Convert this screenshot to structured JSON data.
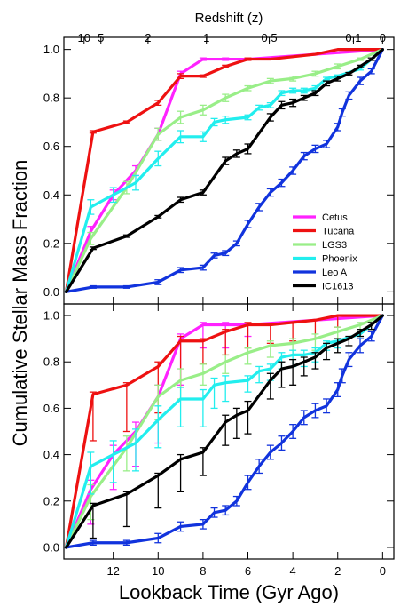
{
  "chart_data": {
    "type": "line",
    "ylabel": "Cumulative Stellar Mass Fraction",
    "xlabel": "Lookback Time (Gyr Ago)",
    "top_axis_label": "Redshift (z)",
    "top_axis_ticks": [
      {
        "label": "10",
        "time": 13.3
      },
      {
        "label": "5",
        "time": 12.55
      },
      {
        "label": "2",
        "time": 10.45
      },
      {
        "label": "1",
        "time": 7.85
      },
      {
        "label": "0.5",
        "time": 5.05
      },
      {
        "label": "0.1",
        "time": 1.3
      },
      {
        "label": "0",
        "time": 0
      }
    ],
    "xlim": [
      14.2,
      -0.5
    ],
    "ylim": [
      -0.05,
      1.05
    ],
    "x_ticks": [
      {
        "value": 12,
        "label": "12"
      },
      {
        "value": 10,
        "label": "10"
      },
      {
        "value": 8,
        "label": "8"
      },
      {
        "value": 6,
        "label": "6"
      },
      {
        "value": 4,
        "label": "4"
      },
      {
        "value": 2,
        "label": "2"
      },
      {
        "value": 0,
        "label": "0"
      }
    ],
    "y_ticks": [
      {
        "value": 0.0,
        "label": "0.0"
      },
      {
        "value": 0.2,
        "label": "0.2"
      },
      {
        "value": 0.4,
        "label": "0.4"
      },
      {
        "value": 0.6,
        "label": "0.6"
      },
      {
        "value": 0.8,
        "label": "0.8"
      },
      {
        "value": 1.0,
        "label": "1.0"
      }
    ],
    "legend_position": "lower-right of top panel",
    "series": [
      {
        "name": "Cetus",
        "color": "#ff22ff",
        "x": [
          14.1,
          13.0,
          12.0,
          11.0,
          10.0,
          9.0,
          8.0,
          7.0,
          6.0,
          0.0
        ],
        "y": [
          0.0,
          0.25,
          0.4,
          0.5,
          0.65,
          0.9,
          0.96,
          0.96,
          0.96,
          1.0
        ],
        "err_top": [
          0.0,
          0.04,
          0.04,
          0.04,
          0.05,
          0.02,
          0.01,
          0.01,
          0.0,
          0.0
        ],
        "err_bottom": [
          0.0,
          0.15,
          0.15,
          0.15,
          0.2,
          0.2,
          0.1,
          0.1,
          0.05,
          0.0
        ]
      },
      {
        "name": "Tucana",
        "color": "#ee1111",
        "x": [
          14.1,
          12.9,
          11.4,
          10.0,
          9.0,
          8.0,
          7.0,
          6.0,
          5.0,
          4.0,
          3.0,
          2.0,
          1.0,
          0.0
        ],
        "y": [
          0.0,
          0.66,
          0.7,
          0.78,
          0.89,
          0.89,
          0.93,
          0.96,
          0.96,
          0.97,
          0.98,
          1.0,
          1.0,
          1.0
        ],
        "err_top": [
          0.0,
          0.01,
          0.01,
          0.02,
          0.02,
          0.01,
          0.01,
          0.01,
          0.0,
          0.0,
          0.0,
          0.0,
          0.0,
          0.0
        ],
        "err_bottom": [
          0.0,
          0.2,
          0.2,
          0.2,
          0.2,
          0.1,
          0.1,
          0.1,
          0.08,
          0.08,
          0.08,
          0.05,
          0.0,
          0.0
        ]
      },
      {
        "name": "LGS3",
        "color": "#99ee88",
        "x": [
          14.1,
          13.0,
          11.4,
          10.0,
          9.0,
          8.0,
          7.0,
          6.0,
          5.0,
          4.0,
          3.0,
          2.0,
          1.0,
          0.0
        ],
        "y": [
          0.0,
          0.22,
          0.43,
          0.65,
          0.72,
          0.75,
          0.8,
          0.84,
          0.87,
          0.88,
          0.9,
          0.93,
          0.96,
          1.0
        ],
        "err_top": [
          0.0,
          0.05,
          0.05,
          0.05,
          0.05,
          0.04,
          0.03,
          0.02,
          0.02,
          0.02,
          0.02,
          0.02,
          0.01,
          0.0
        ],
        "err_bottom": [
          0.0,
          0.1,
          0.1,
          0.1,
          0.08,
          0.05,
          0.05,
          0.05,
          0.05,
          0.05,
          0.05,
          0.03,
          0.02,
          0.0
        ]
      },
      {
        "name": "Phoenix",
        "color": "#22eeee",
        "x": [
          14.1,
          13.0,
          12.0,
          11.0,
          10.0,
          9.0,
          8.0,
          7.5,
          7.0,
          6.0,
          5.5,
          5.0,
          4.5,
          4.0,
          3.5,
          3.0,
          2.5,
          2.0,
          1.0,
          0.0
        ],
        "y": [
          0.0,
          0.35,
          0.4,
          0.45,
          0.55,
          0.64,
          0.64,
          0.7,
          0.71,
          0.72,
          0.76,
          0.77,
          0.82,
          0.83,
          0.83,
          0.84,
          0.88,
          0.89,
          0.92,
          1.0
        ],
        "err_top": [
          0.0,
          0.06,
          0.06,
          0.06,
          0.06,
          0.05,
          0.04,
          0.03,
          0.03,
          0.02,
          0.02,
          0.02,
          0.02,
          0.02,
          0.02,
          0.02,
          0.01,
          0.01,
          0.01,
          0.0
        ],
        "err_bottom": [
          0.0,
          0.12,
          0.12,
          0.12,
          0.12,
          0.12,
          0.12,
          0.1,
          0.08,
          0.05,
          0.05,
          0.05,
          0.05,
          0.05,
          0.05,
          0.04,
          0.03,
          0.03,
          0.02,
          0.0
        ]
      },
      {
        "name": "Leo A",
        "color": "#1133dd",
        "x": [
          14.1,
          12.9,
          11.4,
          10.0,
          9.0,
          8.0,
          7.5,
          7.0,
          6.5,
          6.0,
          5.5,
          5.0,
          4.5,
          4.0,
          3.5,
          3.0,
          2.5,
          2.0,
          1.8,
          1.5,
          1.0,
          0.5,
          0.0
        ],
        "y": [
          0.0,
          0.02,
          0.02,
          0.04,
          0.09,
          0.1,
          0.15,
          0.16,
          0.2,
          0.28,
          0.35,
          0.41,
          0.45,
          0.5,
          0.56,
          0.59,
          0.61,
          0.68,
          0.74,
          0.81,
          0.87,
          0.91,
          1.0
        ],
        "err_top": [
          0.0,
          0.01,
          0.01,
          0.02,
          0.02,
          0.02,
          0.02,
          0.02,
          0.02,
          0.03,
          0.03,
          0.03,
          0.03,
          0.03,
          0.03,
          0.03,
          0.03,
          0.03,
          0.03,
          0.03,
          0.03,
          0.02,
          0.0
        ],
        "err_bottom": [
          0.0,
          0.01,
          0.01,
          0.02,
          0.02,
          0.02,
          0.02,
          0.02,
          0.02,
          0.03,
          0.03,
          0.03,
          0.03,
          0.03,
          0.03,
          0.03,
          0.03,
          0.03,
          0.03,
          0.03,
          0.03,
          0.02,
          0.0
        ]
      },
      {
        "name": "IC1613",
        "color": "#000000",
        "x": [
          14.1,
          12.9,
          11.4,
          10.0,
          9.0,
          8.0,
          7.0,
          6.5,
          6.0,
          5.0,
          4.5,
          4.0,
          3.5,
          3.0,
          2.5,
          2.0,
          1.5,
          1.0,
          0.5,
          0.0
        ],
        "y": [
          0.0,
          0.18,
          0.23,
          0.31,
          0.38,
          0.41,
          0.54,
          0.57,
          0.59,
          0.72,
          0.77,
          0.78,
          0.8,
          0.82,
          0.86,
          0.88,
          0.9,
          0.93,
          0.96,
          1.0
        ],
        "err_top": [
          0.0,
          0.01,
          0.01,
          0.01,
          0.02,
          0.02,
          0.03,
          0.03,
          0.04,
          0.03,
          0.03,
          0.03,
          0.02,
          0.02,
          0.02,
          0.02,
          0.01,
          0.01,
          0.01,
          0.0
        ],
        "err_bottom": [
          0.0,
          0.14,
          0.14,
          0.14,
          0.14,
          0.1,
          0.1,
          0.1,
          0.1,
          0.08,
          0.08,
          0.08,
          0.06,
          0.05,
          0.05,
          0.04,
          0.03,
          0.02,
          0.02,
          0.0
        ]
      }
    ]
  }
}
